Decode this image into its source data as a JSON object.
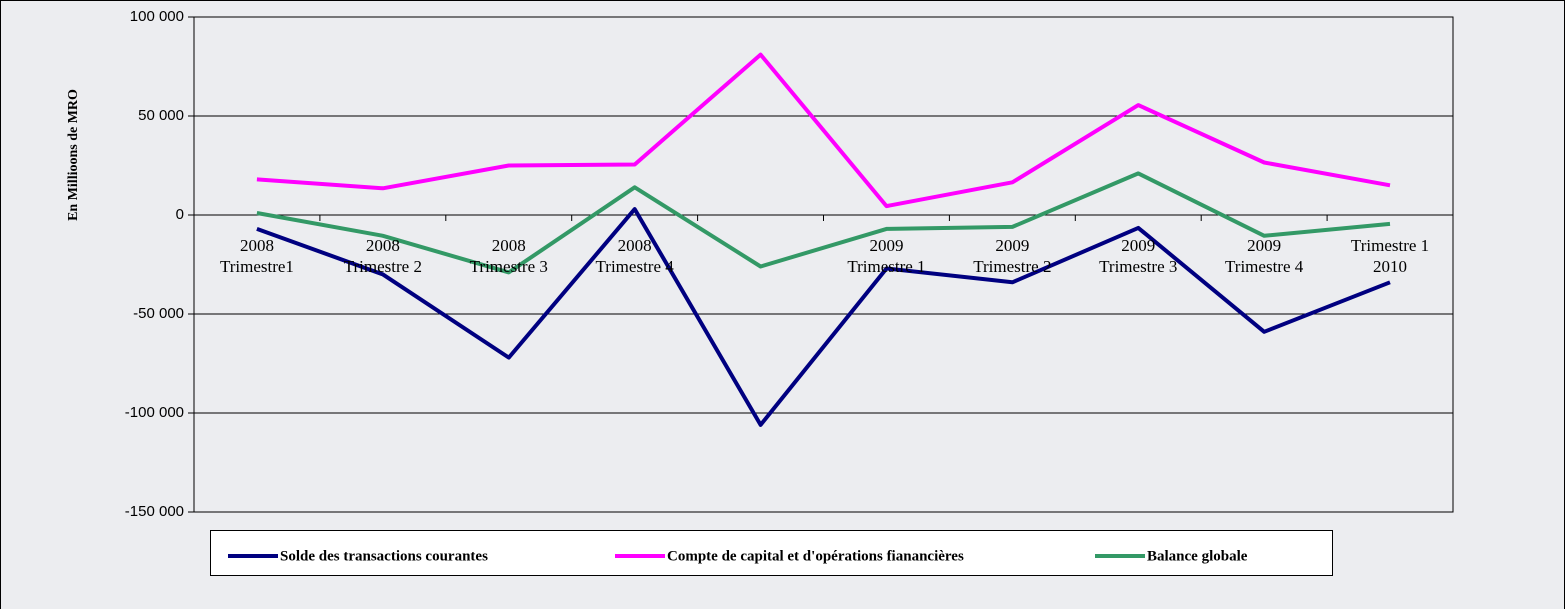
{
  "chart_data": {
    "type": "line",
    "y_label": "En Millioons de MRO",
    "categories": [
      "2008\nTrimestre1",
      "2008\nTrimestre 2",
      "2008\nTrimestre 3",
      "2008\nTrimestre 4",
      null,
      "2009\nTrimestre 1",
      "2009\nTrimestre 2",
      "2009\nTrimestre 3",
      "2009\nTrimestre 4",
      "Trimestre 1\n2010"
    ],
    "series": [
      {
        "name": "Solde des transactions courantes",
        "color": "#000080",
        "values": [
          -7000,
          -30000,
          -72000,
          3000,
          -106000,
          -27000,
          -34000,
          -6500,
          -59000,
          -34000
        ]
      },
      {
        "name": "Compte de capital et d'opérations fianancières",
        "color": "#ff00ff",
        "values": [
          18000,
          13500,
          25000,
          25500,
          81000,
          4500,
          16500,
          55500,
          26500,
          15000
        ]
      },
      {
        "name": "Balance globale",
        "color": "#339966",
        "values": [
          1000,
          -10500,
          -29000,
          14000,
          -26000,
          -7000,
          -6000,
          21000,
          -10500,
          -4500
        ]
      }
    ],
    "ylim": [
      -150000,
      100000
    ],
    "yticks": [
      {
        "value": -150000,
        "label": "-150 000"
      },
      {
        "value": -100000,
        "label": "-100 000"
      },
      {
        "value": -50000,
        "label": "-50 000"
      },
      0,
      {
        "value": 50000,
        "label": "50 000"
      },
      {
        "value": 100000,
        "label": "100 000"
      }
    ],
    "grid": true
  }
}
